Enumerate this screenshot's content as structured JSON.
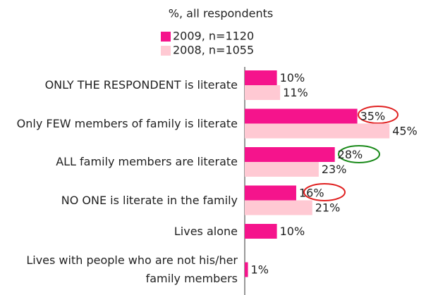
{
  "chart_data": {
    "type": "bar",
    "orientation": "horizontal",
    "title": "%, all respondents",
    "categories": [
      "ONLY THE RESPONDENT is literate",
      "Only FEW members of family is literate",
      "ALL family members are literate",
      "NO ONE is literate in the family",
      "Lives alone",
      "Lives with people who are not his/her family members"
    ],
    "series": [
      {
        "name": "2009, n=1120",
        "color": "#f5148c",
        "values": [
          10,
          35,
          28,
          16,
          10,
          1
        ],
        "value_labels": [
          "10%",
          "35%",
          "28%",
          "16%",
          "10%",
          "1%"
        ]
      },
      {
        "name": "2008, n=1055",
        "color": "#ffc9d3",
        "values": [
          11,
          45,
          23,
          21,
          null,
          null
        ],
        "value_labels": [
          "11%",
          "45%",
          "23%",
          "21%",
          null,
          null
        ]
      }
    ]
  }
}
